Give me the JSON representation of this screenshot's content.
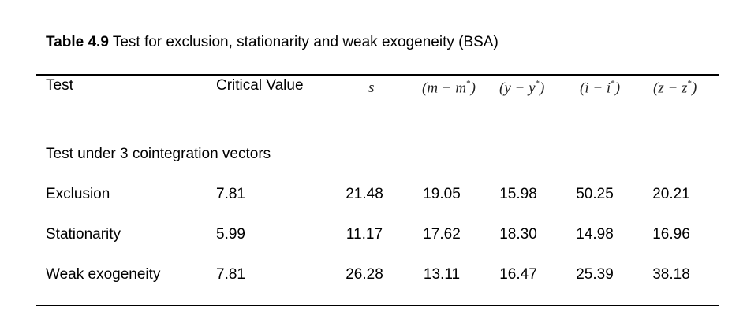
{
  "caption": {
    "label": "Table 4.9",
    "text": " Test for exclusion, stationarity and weak exogeneity (BSA)"
  },
  "header": {
    "test": "Test",
    "critical": "Critical Value",
    "cols": [
      {
        "base": "s",
        "star": ""
      },
      {
        "base": "(m − m",
        "star": "*",
        "close": ")"
      },
      {
        "base": "(y − y",
        "star": "*",
        "close": ")"
      },
      {
        "base": "(i − i",
        "star": "*",
        "close": ")"
      },
      {
        "base": "(z  − z",
        "star": "*",
        "close": ")"
      }
    ]
  },
  "section_label": "Test under 3 cointegration vectors",
  "rows": [
    {
      "test": "Exclusion",
      "critical": "7.81",
      "values": [
        "21.48",
        "19.05",
        "15.98",
        "50.25",
        "20.21"
      ]
    },
    {
      "test": "Stationarity",
      "critical": "5.99",
      "values": [
        "11.17",
        "17.62",
        "18.30",
        "14.98",
        "16.96"
      ]
    },
    {
      "test": "Weak exogeneity",
      "critical": "7.81",
      "values": [
        "26.28",
        "13.11",
        "16.47",
        "25.39",
        "38.18"
      ]
    }
  ]
}
